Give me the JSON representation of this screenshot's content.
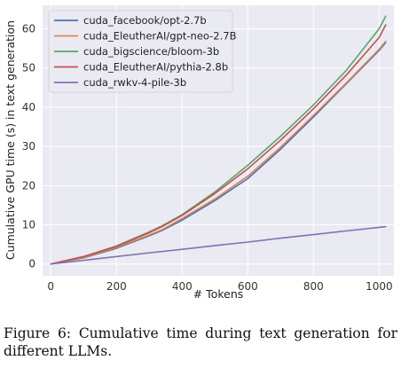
{
  "chart_data": {
    "type": "line",
    "xlabel": "# Tokens",
    "ylabel": "Cumulative GPU time (s) in text generation",
    "xlim": [
      -25,
      1045
    ],
    "ylim": [
      -3,
      66
    ],
    "xticks": [
      0,
      200,
      400,
      600,
      800,
      1000
    ],
    "yticks": [
      0,
      10,
      20,
      30,
      40,
      50,
      60
    ],
    "grid": true,
    "legend_position": "top-left",
    "series": [
      {
        "name": "cuda_facebook/opt-2.7b",
        "color": "#4c72b0",
        "x": [
          0,
          100,
          200,
          300,
          340,
          400,
          500,
          600,
          700,
          800,
          900,
          1000,
          1020
        ],
        "y": [
          0,
          1.6,
          4.0,
          7.2,
          8.6,
          11.2,
          16.2,
          21.8,
          29.3,
          37.5,
          46.0,
          54.5,
          56.5
        ]
      },
      {
        "name": "cuda_EleutherAI/gpt-neo-2.7B",
        "color": "#dd8452",
        "x": [
          0,
          100,
          200,
          300,
          340,
          400,
          500,
          600,
          700,
          800,
          900,
          1000,
          1020
        ],
        "y": [
          0,
          1.7,
          4.2,
          7.4,
          8.8,
          11.6,
          16.6,
          22.4,
          29.8,
          37.9,
          46.2,
          54.8,
          56.8
        ]
      },
      {
        "name": "cuda_bigscience/bloom-3b",
        "color": "#55a868",
        "x": [
          0,
          100,
          200,
          300,
          340,
          400,
          500,
          600,
          700,
          800,
          900,
          1000,
          1020
        ],
        "y": [
          0,
          1.9,
          4.6,
          8.2,
          9.8,
          12.6,
          18.4,
          25.2,
          32.6,
          40.6,
          49.4,
          60.0,
          63.2
        ]
      },
      {
        "name": "cuda_EleutherAI/pythia-2.8b",
        "color": "#c44e52",
        "x": [
          0,
          100,
          200,
          300,
          340,
          400,
          500,
          600,
          700,
          800,
          900,
          1000,
          1020
        ],
        "y": [
          0,
          1.9,
          4.5,
          8.0,
          9.6,
          12.4,
          18.0,
          24.3,
          31.6,
          39.6,
          48.2,
          57.8,
          61.0
        ]
      },
      {
        "name": "cuda_rwkv-4-pile-3b",
        "color": "#8172b3",
        "x": [
          0,
          100,
          200,
          300,
          400,
          500,
          600,
          700,
          800,
          900,
          1000,
          1020
        ],
        "y": [
          0,
          0.95,
          1.9,
          2.85,
          3.75,
          4.7,
          5.6,
          6.6,
          7.5,
          8.45,
          9.35,
          9.55
        ]
      }
    ]
  },
  "caption": {
    "text": "Figure 6: Cumulative time during text generation for different LLMs."
  }
}
